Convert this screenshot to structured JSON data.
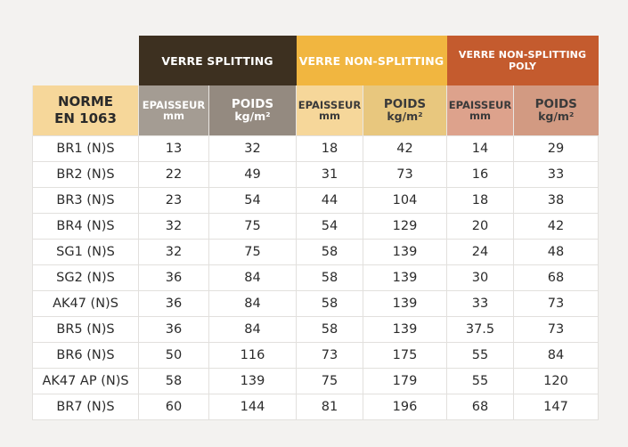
{
  "header": {
    "norme": [
      "NORME",
      "EN 1063"
    ],
    "groups": [
      "VERRE SPLITTING",
      "VERRE NON-SPLITTING",
      "VERRE NON-SPLITTING POLY"
    ],
    "epaisseur": [
      "EPAISSEUR",
      "mm"
    ],
    "poids": [
      "POIDS",
      "kg/m²"
    ]
  },
  "rows": [
    {
      "norme": "BR1 (N)S",
      "split_e": "13",
      "split_p": "32",
      "non_e": "18",
      "non_p": "42",
      "poly_e": "14",
      "poly_p": "29"
    },
    {
      "norme": "BR2 (N)S",
      "split_e": "22",
      "split_p": "49",
      "non_e": "31",
      "non_p": "73",
      "poly_e": "16",
      "poly_p": "33"
    },
    {
      "norme": "BR3 (N)S",
      "split_e": "23",
      "split_p": "54",
      "non_e": "44",
      "non_p": "104",
      "poly_e": "18",
      "poly_p": "38"
    },
    {
      "norme": "BR4 (N)S",
      "split_e": "32",
      "split_p": "75",
      "non_e": "54",
      "non_p": "129",
      "poly_e": "20",
      "poly_p": "42"
    },
    {
      "norme": "SG1 (N)S",
      "split_e": "32",
      "split_p": "75",
      "non_e": "58",
      "non_p": "139",
      "poly_e": "24",
      "poly_p": "48"
    },
    {
      "norme": "SG2 (N)S",
      "split_e": "36",
      "split_p": "84",
      "non_e": "58",
      "non_p": "139",
      "poly_e": "30",
      "poly_p": "68"
    },
    {
      "norme": "AK47 (N)S",
      "split_e": "36",
      "split_p": "84",
      "non_e": "58",
      "non_p": "139",
      "poly_e": "33",
      "poly_p": "73"
    },
    {
      "norme": "BR5 (N)S",
      "split_e": "36",
      "split_p": "84",
      "non_e": "58",
      "non_p": "139",
      "poly_e": "37.5",
      "poly_p": "73"
    },
    {
      "norme": "BR6 (N)S",
      "split_e": "50",
      "split_p": "116",
      "non_e": "73",
      "non_p": "175",
      "poly_e": "55",
      "poly_p": "84"
    },
    {
      "norme": "AK47 AP (N)S",
      "split_e": "58",
      "split_p": "139",
      "non_e": "75",
      "non_p": "179",
      "poly_e": "55",
      "poly_p": "120"
    },
    {
      "norme": "BR7 (N)S",
      "split_e": "60",
      "split_p": "144",
      "non_e": "81",
      "non_p": "196",
      "poly_e": "68",
      "poly_p": "147"
    }
  ],
  "colors": {
    "splitting": "#3d3020",
    "non_splitting": "#f1b640",
    "non_splitting_poly": "#c45b2e",
    "norme_header": "#f6d79a"
  }
}
